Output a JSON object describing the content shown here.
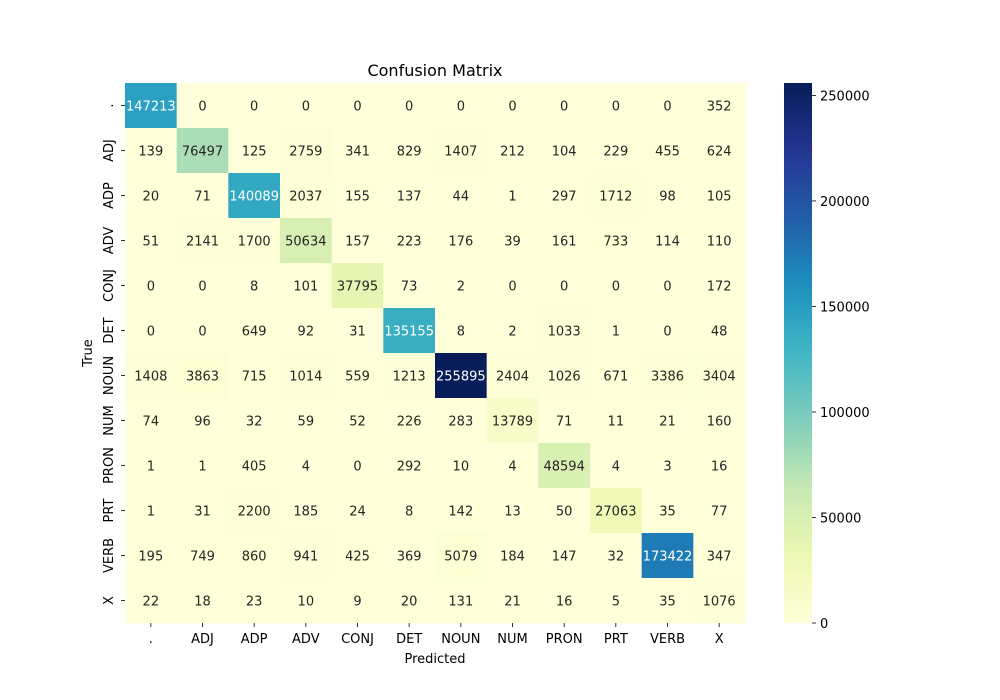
{
  "chart_data": {
    "type": "heatmap",
    "title": "Confusion Matrix",
    "xlabel": "Predicted",
    "ylabel": "True",
    "colormap": "YlGnBu",
    "x_categories": [
      ".",
      "ADJ",
      "ADP",
      "ADV",
      "CONJ",
      "DET",
      "NOUN",
      "NUM",
      "PRON",
      "PRT",
      "VERB",
      "X"
    ],
    "y_categories": [
      ".",
      "ADJ",
      "ADP",
      "ADV",
      "CONJ",
      "DET",
      "NOUN",
      "NUM",
      "PRON",
      "PRT",
      "VERB",
      "X"
    ],
    "values": [
      [
        147213,
        0,
        0,
        0,
        0,
        0,
        0,
        0,
        0,
        0,
        0,
        352
      ],
      [
        139,
        76497,
        125,
        2759,
        341,
        829,
        1407,
        212,
        104,
        229,
        455,
        624
      ],
      [
        20,
        71,
        140089,
        2037,
        155,
        137,
        44,
        1,
        297,
        1712,
        98,
        105
      ],
      [
        51,
        2141,
        1700,
        50634,
        157,
        223,
        176,
        39,
        161,
        733,
        114,
        110
      ],
      [
        0,
        0,
        8,
        101,
        37795,
        73,
        2,
        0,
        0,
        0,
        0,
        172
      ],
      [
        0,
        0,
        649,
        92,
        31,
        135155,
        8,
        2,
        1033,
        1,
        0,
        48
      ],
      [
        1408,
        3863,
        715,
        1014,
        559,
        1213,
        255895,
        2404,
        1026,
        671,
        3386,
        3404
      ],
      [
        74,
        96,
        32,
        59,
        52,
        226,
        283,
        13789,
        71,
        11,
        21,
        160
      ],
      [
        1,
        1,
        405,
        4,
        0,
        292,
        10,
        4,
        48594,
        4,
        3,
        16
      ],
      [
        1,
        31,
        2200,
        185,
        24,
        8,
        142,
        13,
        50,
        27063,
        35,
        77
      ],
      [
        195,
        749,
        860,
        941,
        425,
        369,
        5079,
        184,
        147,
        32,
        173422,
        347
      ],
      [
        22,
        18,
        23,
        10,
        9,
        20,
        131,
        21,
        16,
        5,
        35,
        1076
      ]
    ],
    "vmin": 0,
    "vmax": 255895,
    "colorbar_ticks": [
      0,
      50000,
      100000,
      150000,
      200000,
      250000
    ],
    "colorbar_tick_labels": [
      "0",
      "50000",
      "100000",
      "150000",
      "200000",
      "250000"
    ]
  }
}
